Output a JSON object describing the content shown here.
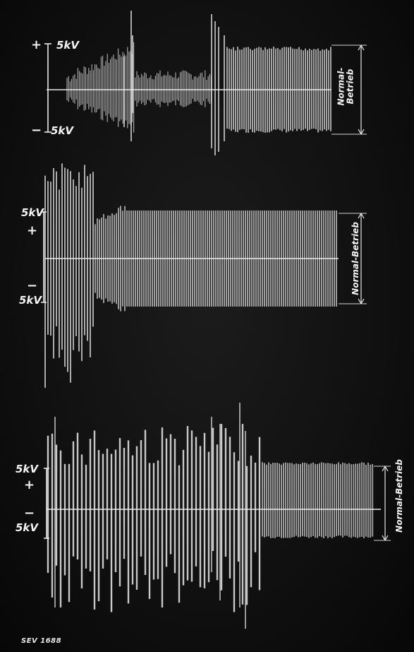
{
  "scopes": [
    {
      "id": "scope-1",
      "top_label": "5kV",
      "bottom_label": "5kV",
      "plus_sign": "+",
      "minus_sign": "−",
      "normal_label_line1": "Normal-",
      "normal_label_line2": "Betrieb"
    },
    {
      "id": "scope-2",
      "top_label": "5kV",
      "bottom_label": "5kV",
      "plus_sign": "+",
      "minus_sign": "−",
      "normal_label": "Normal-Betrieb"
    },
    {
      "id": "scope-3",
      "top_label": "5kV",
      "bottom_label": "5kV",
      "plus_sign": "+",
      "minus_sign": "−",
      "normal_label": "Normal-Betrieb"
    }
  ],
  "caption": "SEV 1688",
  "colors": {
    "background": "#0d0d0d",
    "trace": "#e9e9e9"
  }
}
